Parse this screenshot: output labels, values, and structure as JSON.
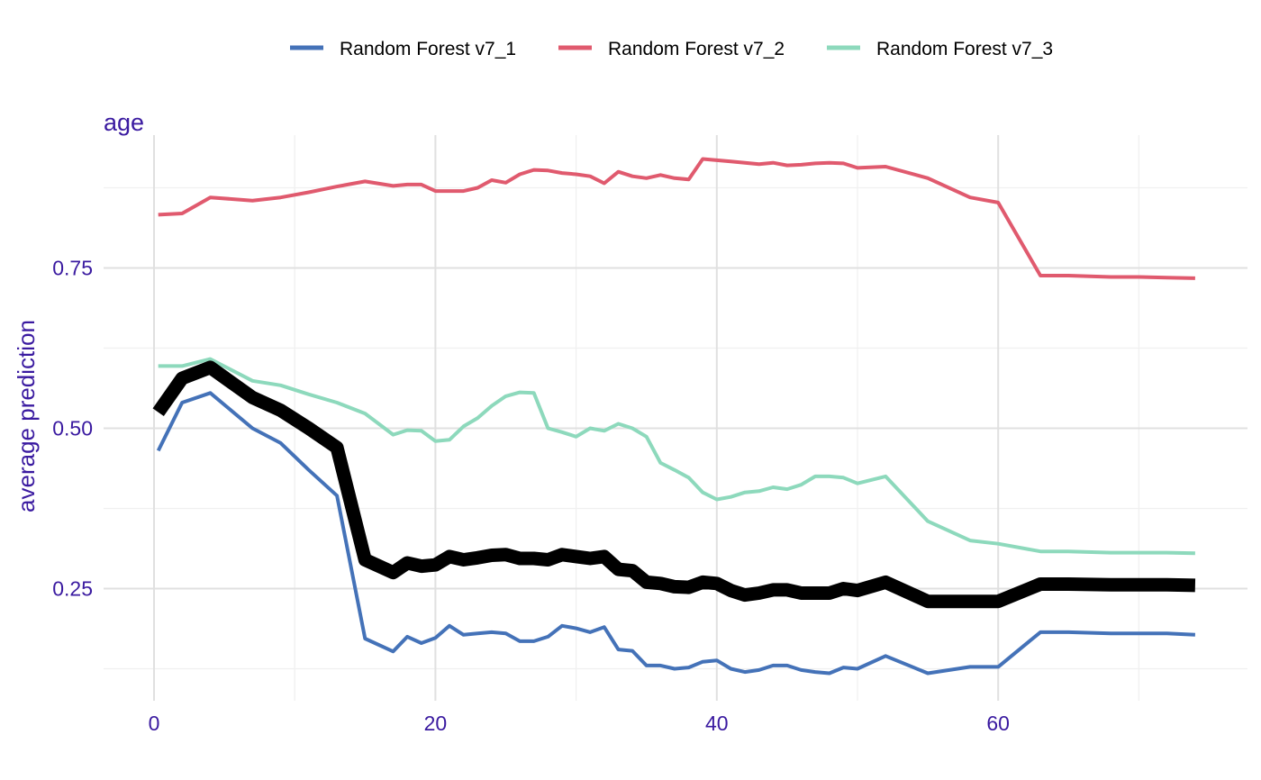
{
  "chart_data": {
    "type": "line",
    "title": "age",
    "xlabel": "",
    "ylabel": "average prediction",
    "xlim": [
      -4.5,
      77
    ],
    "ylim": [
      0.085,
      0.95
    ],
    "x_ticks": [
      0,
      20,
      40,
      60
    ],
    "y_ticks": [
      0.25,
      0.5,
      0.75
    ],
    "y_tick_labels": [
      "0.25",
      "0.50",
      "0.75"
    ],
    "grid": true,
    "legend_position": "top",
    "colors": {
      "text": "#3a1aa0",
      "grid_major": "#e0e0e0",
      "grid_minor": "#f0f0f0",
      "mean": "#000000"
    },
    "series": [
      {
        "name": "Random Forest v7_1",
        "color": "#4472b8",
        "x": [
          0.3,
          2,
          4,
          7,
          9,
          11,
          13,
          15,
          17,
          18,
          19,
          20,
          21,
          22,
          23,
          24,
          25,
          26,
          27,
          28,
          29,
          30,
          31,
          32,
          33,
          34,
          35,
          36,
          37,
          38,
          39,
          40,
          41,
          42,
          43,
          44,
          45,
          46,
          47,
          48,
          49,
          50,
          52,
          55,
          58,
          60,
          63,
          65,
          68,
          70,
          72,
          74
        ],
        "values": [
          0.465,
          0.54,
          0.555,
          0.5,
          0.477,
          0.435,
          0.395,
          0.172,
          0.152,
          0.175,
          0.165,
          0.173,
          0.192,
          0.178,
          0.18,
          0.182,
          0.18,
          0.168,
          0.168,
          0.175,
          0.192,
          0.188,
          0.182,
          0.19,
          0.155,
          0.153,
          0.13,
          0.13,
          0.125,
          0.127,
          0.136,
          0.138,
          0.125,
          0.12,
          0.123,
          0.13,
          0.13,
          0.123,
          0.12,
          0.118,
          0.127,
          0.125,
          0.145,
          0.118,
          0.128,
          0.128,
          0.182,
          0.182,
          0.18,
          0.18,
          0.18,
          0.178
        ]
      },
      {
        "name": "Random Forest v7_2",
        "color": "#e05a6e",
        "x": [
          0.3,
          2,
          4,
          7,
          9,
          11,
          13,
          15,
          17,
          18,
          19,
          20,
          21,
          22,
          23,
          24,
          25,
          26,
          27,
          28,
          29,
          30,
          31,
          32,
          33,
          34,
          35,
          36,
          37,
          38,
          39,
          40,
          41,
          42,
          43,
          44,
          45,
          46,
          47,
          48,
          49,
          50,
          52,
          55,
          58,
          60,
          63,
          65,
          68,
          70,
          72,
          74
        ],
        "values": [
          0.833,
          0.835,
          0.86,
          0.855,
          0.86,
          0.868,
          0.877,
          0.885,
          0.878,
          0.88,
          0.88,
          0.87,
          0.87,
          0.87,
          0.875,
          0.887,
          0.883,
          0.896,
          0.903,
          0.902,
          0.898,
          0.896,
          0.893,
          0.882,
          0.9,
          0.893,
          0.89,
          0.895,
          0.89,
          0.888,
          0.92,
          0.918,
          0.916,
          0.914,
          0.912,
          0.914,
          0.91,
          0.911,
          0.913,
          0.914,
          0.913,
          0.906,
          0.908,
          0.89,
          0.86,
          0.852,
          0.738,
          0.738,
          0.736,
          0.736,
          0.735,
          0.734
        ]
      },
      {
        "name": "Random Forest v7_3",
        "color": "#8dd9bc",
        "x": [
          0.3,
          2,
          4,
          7,
          9,
          11,
          13,
          15,
          17,
          18,
          19,
          20,
          21,
          22,
          23,
          24,
          25,
          26,
          27,
          28,
          29,
          30,
          31,
          32,
          33,
          34,
          35,
          36,
          37,
          38,
          39,
          40,
          41,
          42,
          43,
          44,
          45,
          46,
          47,
          48,
          49,
          50,
          52,
          55,
          58,
          60,
          63,
          65,
          68,
          70,
          72,
          74
        ],
        "values": [
          0.597,
          0.597,
          0.608,
          0.574,
          0.567,
          0.553,
          0.54,
          0.523,
          0.49,
          0.497,
          0.496,
          0.48,
          0.482,
          0.503,
          0.516,
          0.535,
          0.55,
          0.556,
          0.555,
          0.5,
          0.494,
          0.487,
          0.5,
          0.496,
          0.507,
          0.5,
          0.487,
          0.446,
          0.435,
          0.423,
          0.4,
          0.389,
          0.393,
          0.4,
          0.402,
          0.408,
          0.405,
          0.412,
          0.425,
          0.425,
          0.423,
          0.414,
          0.425,
          0.355,
          0.325,
          0.32,
          0.308,
          0.308,
          0.306,
          0.306,
          0.306,
          0.305
        ]
      }
    ],
    "mean_line": {
      "x": [
        0.3,
        2,
        4,
        7,
        9,
        11,
        13,
        15,
        17,
        18,
        19,
        20,
        21,
        22,
        23,
        24,
        25,
        26,
        27,
        28,
        29,
        30,
        31,
        32,
        33,
        34,
        35,
        36,
        37,
        38,
        39,
        40,
        41,
        42,
        43,
        44,
        45,
        46,
        47,
        48,
        49,
        50,
        52,
        55,
        58,
        60,
        63,
        65,
        68,
        70,
        72,
        74
      ],
      "values": [
        0.525,
        0.578,
        0.595,
        0.548,
        0.528,
        0.5,
        0.47,
        0.295,
        0.275,
        0.29,
        0.285,
        0.287,
        0.3,
        0.295,
        0.298,
        0.302,
        0.303,
        0.297,
        0.297,
        0.295,
        0.303,
        0.3,
        0.297,
        0.3,
        0.28,
        0.278,
        0.26,
        0.258,
        0.253,
        0.252,
        0.26,
        0.258,
        0.247,
        0.24,
        0.243,
        0.248,
        0.248,
        0.243,
        0.243,
        0.243,
        0.25,
        0.247,
        0.26,
        0.23,
        0.23,
        0.23,
        0.257,
        0.257,
        0.256,
        0.256,
        0.256,
        0.255
      ]
    }
  }
}
